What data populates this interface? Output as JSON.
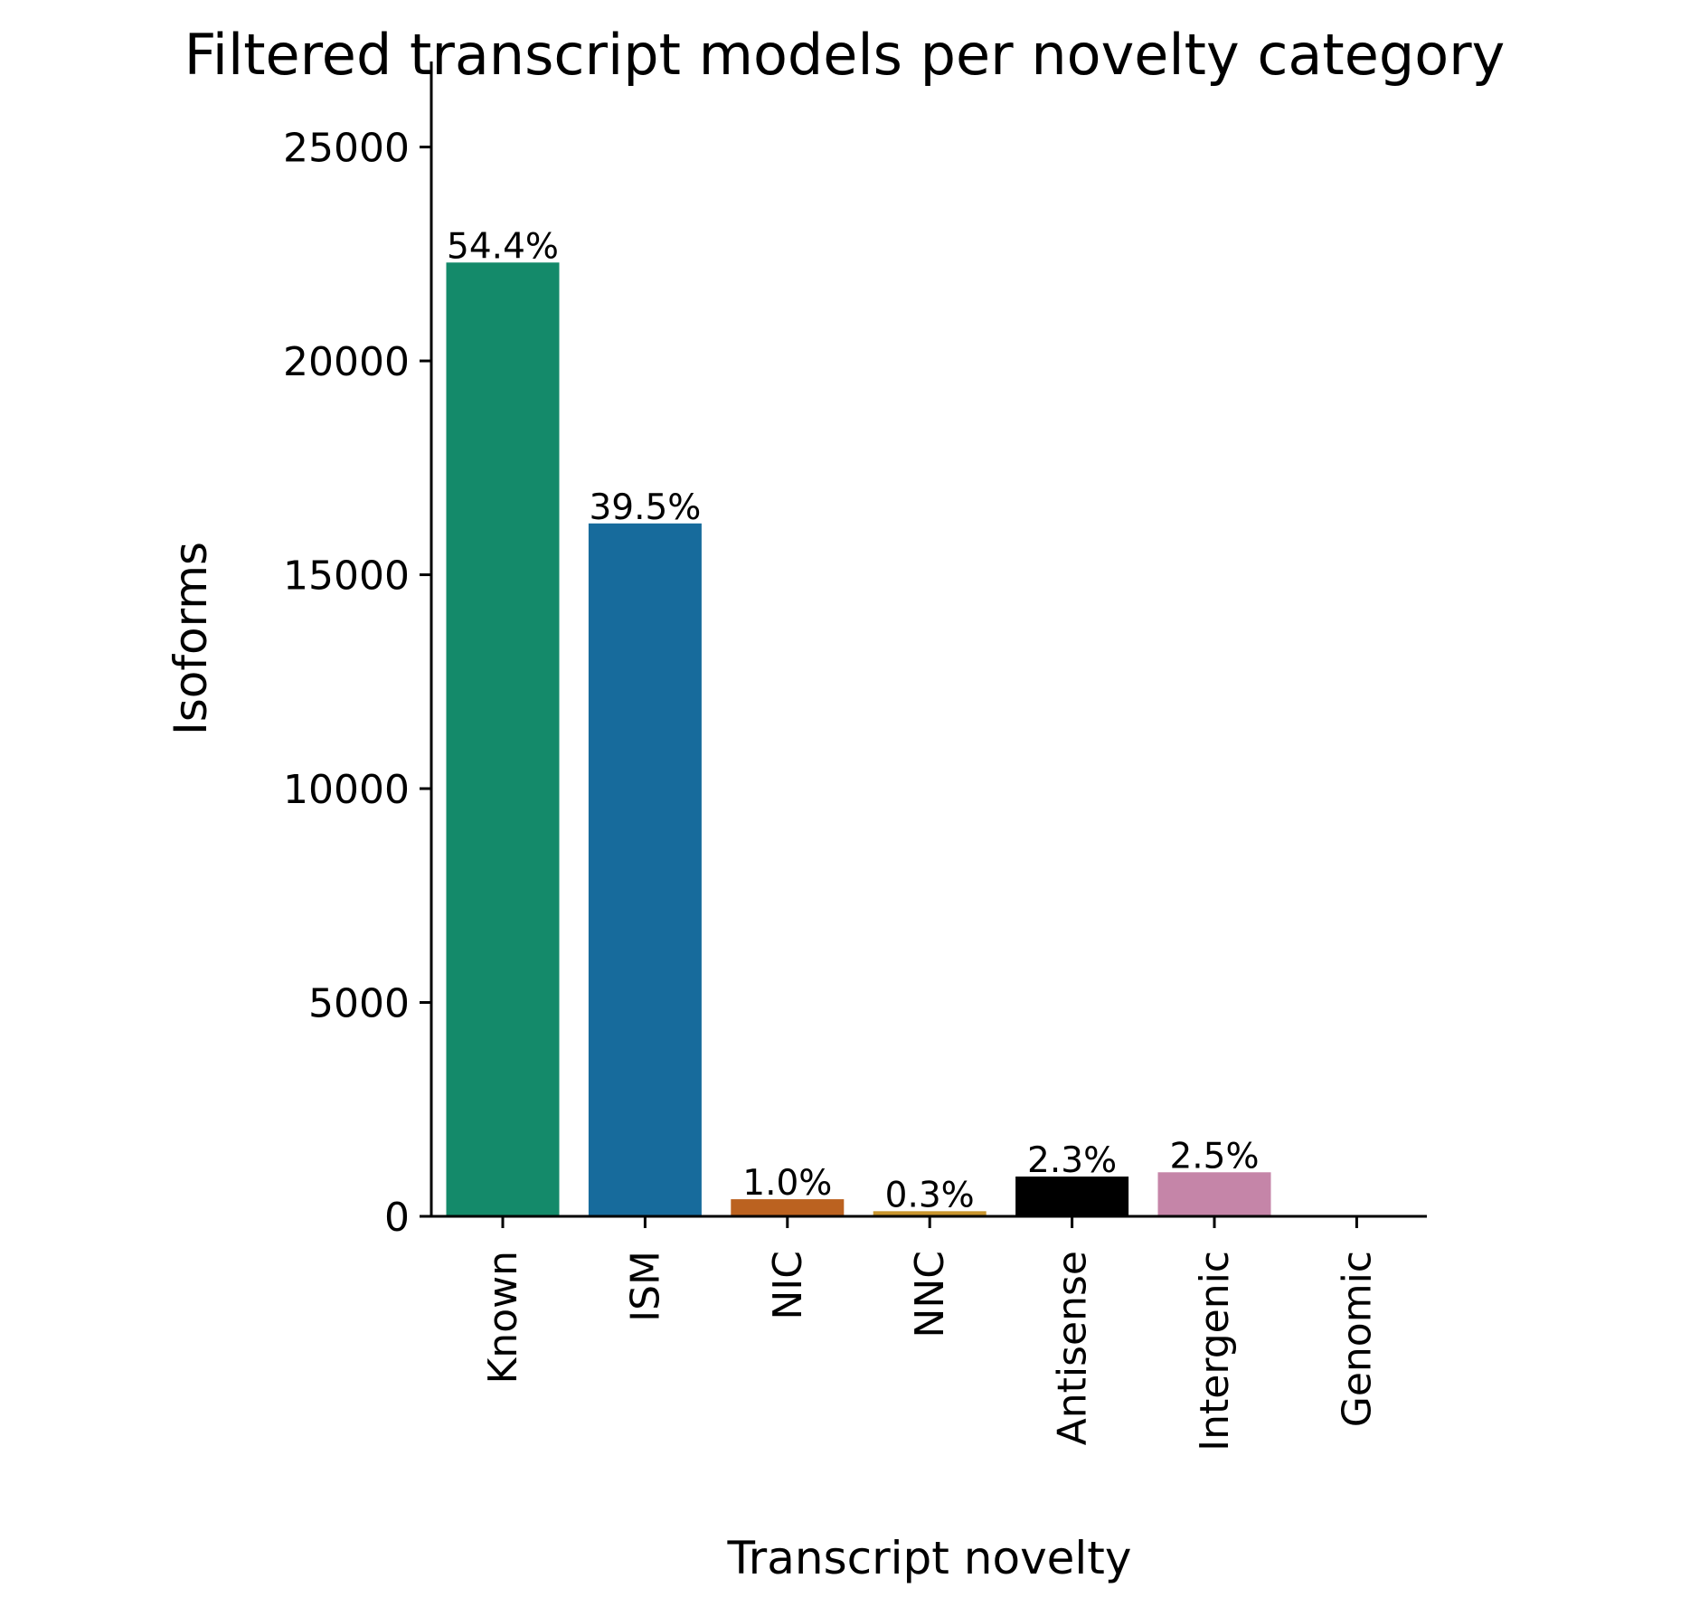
{
  "chart_data": {
    "type": "bar",
    "title": "Filtered transcript models per novelty category",
    "xlabel": "Transcript novelty",
    "ylabel": "Isoforms",
    "ylim": [
      0,
      27000
    ],
    "yticks": [
      0,
      5000,
      10000,
      15000,
      20000,
      25000
    ],
    "grid": false,
    "legend": "none",
    "categories": [
      "Known",
      "ISM",
      "NIC",
      "NNC",
      "Antisense",
      "Intergenic",
      "Genomic"
    ],
    "values": [
      22300,
      16200,
      400,
      120,
      930,
      1030,
      0
    ],
    "data_labels": [
      "54.4%",
      "39.5%",
      "1.0%",
      "0.3%",
      "2.3%",
      "2.5%",
      ""
    ],
    "colors": [
      "#148a6a",
      "#176b9c",
      "#bb6220",
      "#c9962e",
      "#000000",
      "#c585a8",
      "#5fb3e3"
    ]
  }
}
